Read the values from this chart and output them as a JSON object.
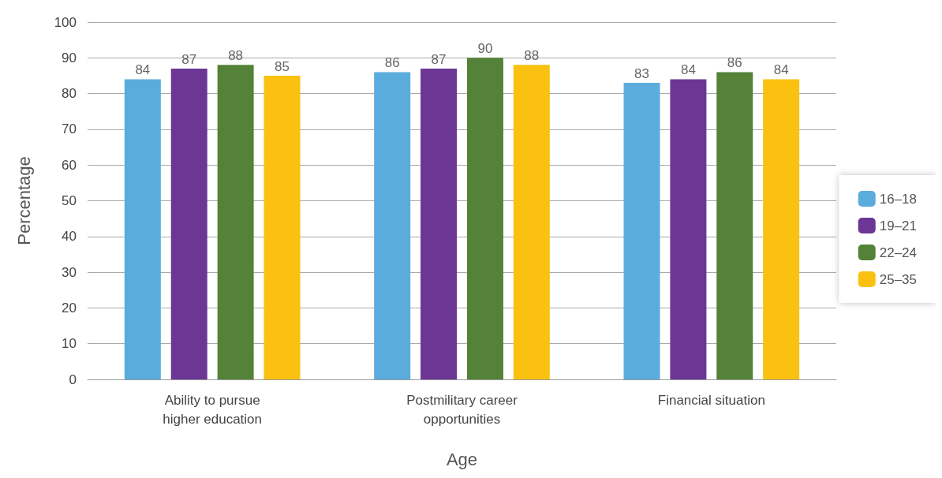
{
  "chart_data": {
    "type": "bar",
    "xlabel": "Age",
    "ylabel": "Percentage",
    "categories": [
      "Ability to pursue\nhigher education",
      "Postmilitary career\nopportunities",
      "Financial situation"
    ],
    "series": [
      {
        "name": "16–18",
        "color": "#5aacdc",
        "values": [
          84,
          86,
          83
        ]
      },
      {
        "name": "19–21",
        "color": "#6c3794",
        "values": [
          87,
          87,
          84
        ]
      },
      {
        "name": "22–24",
        "color": "#538238",
        "values": [
          88,
          90,
          86
        ]
      },
      {
        "name": "25–35",
        "color": "#fbc110",
        "values": [
          85,
          88,
          84
        ]
      }
    ],
    "ylim": [
      0,
      100
    ],
    "yticks": [
      0,
      10,
      20,
      30,
      40,
      50,
      60,
      70,
      80,
      90,
      100
    ],
    "grid": "y",
    "legend": "right",
    "data_labels": true
  }
}
